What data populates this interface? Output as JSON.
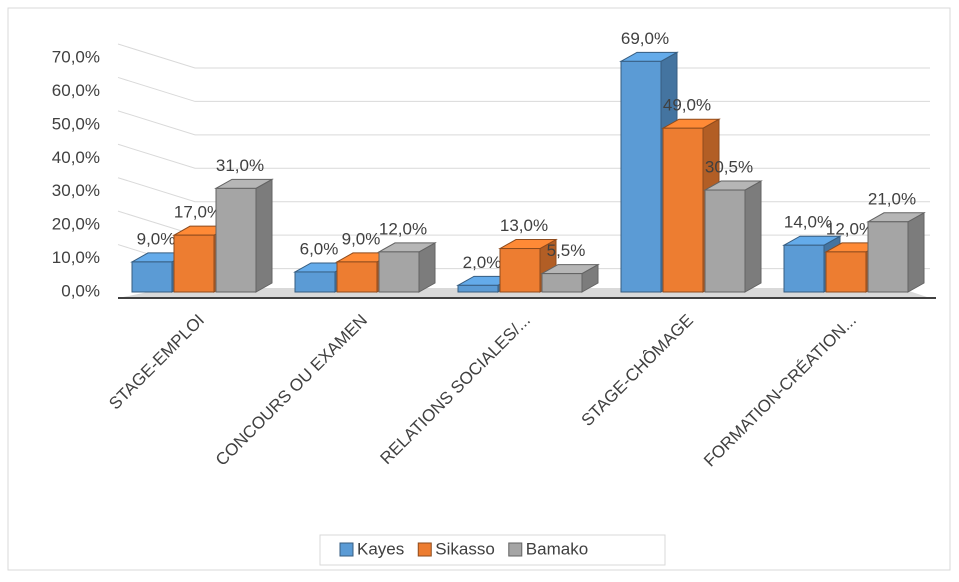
{
  "chart_data": {
    "type": "bar3d",
    "categories": [
      "STAGE-EMPLOI",
      "CONCOURS OU EXAMEN",
      "RELATIONS SOCIALES/...",
      "STAGE-CHÔMAGE",
      "FORMATION-CRÉATION..."
    ],
    "series": [
      {
        "name": "Kayes",
        "color": "#5b9bd5",
        "values": [
          9,
          6,
          2,
          69,
          14
        ],
        "value_labels": [
          "9,0%",
          "6,0%",
          "2,0%",
          "69,0%",
          "14,0%"
        ]
      },
      {
        "name": "Sikasso",
        "color": "#ed7d31",
        "values": [
          17,
          9,
          13,
          49,
          12
        ],
        "value_labels": [
          "17,0%",
          "9,0%",
          "13,0%",
          "49,0%",
          "12,0%"
        ]
      },
      {
        "name": "Bamako",
        "color": "#a5a5a5",
        "values": [
          31,
          12,
          5.5,
          30.5,
          21
        ],
        "value_labels": [
          "31,0%",
          "12,0%",
          "5,5%",
          "30,5%",
          "21,0%"
        ]
      }
    ],
    "ylim": [
      0,
      70
    ],
    "yticks": [
      {
        "value": 0,
        "label": "0,0%"
      },
      {
        "value": 10,
        "label": "10,0%"
      },
      {
        "value": 20,
        "label": "20,0%"
      },
      {
        "value": 30,
        "label": "30,0%"
      },
      {
        "value": 40,
        "label": "40,0%"
      },
      {
        "value": 50,
        "label": "50,0%"
      },
      {
        "value": 60,
        "label": "60,0%"
      },
      {
        "value": 70,
        "label": "70,0%"
      }
    ],
    "grid": true,
    "legend": "bottom"
  }
}
